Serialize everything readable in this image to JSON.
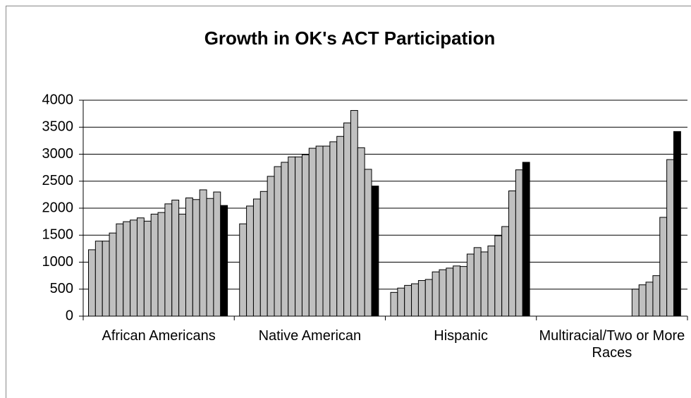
{
  "chart_data": {
    "type": "bar",
    "title": "Growth in OK's ACT Participation",
    "categories": [
      "African Americans",
      "Native American",
      "Hispanic",
      "Multiracial/Two or More Races"
    ],
    "ylim": [
      0,
      4000
    ],
    "yticks": [
      0,
      500,
      1000,
      1500,
      2000,
      2500,
      3000,
      3500,
      4000
    ],
    "grid": true,
    "series": [
      {
        "color": "#c0c0c0",
        "values": [
          1230,
          1710,
          440,
          null
        ]
      },
      {
        "color": "#c0c0c0",
        "values": [
          1390,
          2040,
          520,
          null
        ]
      },
      {
        "color": "#c0c0c0",
        "values": [
          1390,
          2170,
          570,
          null
        ]
      },
      {
        "color": "#c0c0c0",
        "values": [
          1540,
          2310,
          600,
          null
        ]
      },
      {
        "color": "#c0c0c0",
        "values": [
          1710,
          2590,
          660,
          null
        ]
      },
      {
        "color": "#c0c0c0",
        "values": [
          1750,
          2770,
          680,
          null
        ]
      },
      {
        "color": "#c0c0c0",
        "values": [
          1780,
          2850,
          820,
          null
        ]
      },
      {
        "color": "#c0c0c0",
        "values": [
          1820,
          2950,
          860,
          null
        ]
      },
      {
        "color": "#c0c0c0",
        "values": [
          1760,
          2950,
          890,
          null
        ]
      },
      {
        "color": "#c0c0c0",
        "values": [
          1890,
          2990,
          930,
          null
        ]
      },
      {
        "color": "#c0c0c0",
        "values": [
          1920,
          3110,
          920,
          null
        ]
      },
      {
        "color": "#c0c0c0",
        "values": [
          2080,
          3150,
          1150,
          null
        ]
      },
      {
        "color": "#c0c0c0",
        "values": [
          2150,
          3150,
          1270,
          null
        ]
      },
      {
        "color": "#c0c0c0",
        "values": [
          1890,
          3230,
          1190,
          500
        ]
      },
      {
        "color": "#c0c0c0",
        "values": [
          2190,
          3330,
          1300,
          580
        ]
      },
      {
        "color": "#c0c0c0",
        "values": [
          2160,
          3580,
          1490,
          630
        ]
      },
      {
        "color": "#c0c0c0",
        "values": [
          2340,
          3810,
          1660,
          750
        ]
      },
      {
        "color": "#c0c0c0",
        "values": [
          2180,
          3120,
          2320,
          1830
        ]
      },
      {
        "color": "#c0c0c0",
        "values": [
          2300,
          2720,
          2710,
          2900
        ]
      },
      {
        "color": "#000000",
        "values": [
          2050,
          2410,
          2850,
          3420
        ]
      }
    ]
  }
}
